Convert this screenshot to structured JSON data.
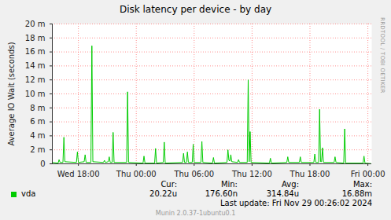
{
  "chart_data": {
    "type": "line",
    "title": "Disk latency per device - by day",
    "y_label": "Average IO Wait (seconds)",
    "side_text": "RRDTOOL / TOBI OETIKER",
    "x": [
      15.3,
      15.9,
      16.0,
      16.1,
      16.4,
      16.5,
      16.6,
      17.8,
      17.9,
      18.0,
      18.6,
      18.7,
      18.8,
      19.3,
      19.4,
      19.5,
      20.6,
      20.7,
      20.8,
      21.1,
      21.2,
      21.3,
      21.5,
      21.6,
      21.7,
      23.0,
      23.1,
      23.2,
      24.7,
      24.8,
      24.9,
      25.9,
      26.0,
      26.1,
      26.8,
      26.9,
      27.0,
      28.8,
      28.9,
      29.0,
      29.2,
      29.3,
      29.4,
      29.8,
      29.9,
      30.0,
      30.7,
      30.8,
      30.9,
      31.9,
      32.0,
      32.1,
      33.4,
      33.5,
      33.6,
      33.7,
      33.8,
      33.9,
      34.5,
      34.6,
      34.7,
      35.5,
      35.6,
      35.7,
      35.8,
      35.9,
      37.8,
      37.9,
      38.0,
      39.6,
      39.7,
      39.8,
      40.9,
      41.0,
      41.1,
      42.4,
      42.5,
      42.6,
      42.9,
      43.0,
      43.1,
      43.2,
      43.3,
      43.4,
      44.5,
      44.6,
      44.7,
      45.5,
      45.6,
      45.7,
      47.5,
      47.6,
      47.7,
      48.4
    ],
    "series": [
      {
        "name": "vda",
        "color": "#00cc00",
        "values": [
          0.0002,
          0.0001,
          0.0006,
          0.0002,
          0.0002,
          0.0038,
          0.0003,
          0.0002,
          0.0017,
          0.0002,
          0.0003,
          0.0013,
          0.0002,
          0.0002,
          0.01688,
          0.0003,
          0.0002,
          0.0005,
          0.0002,
          0.0003,
          0.001,
          0.0002,
          0.0002,
          0.0045,
          0.0002,
          0.0002,
          0.0103,
          0.0002,
          0.0001,
          0.0011,
          0.0001,
          0.0001,
          0.0022,
          0.0001,
          0.0002,
          0.0031,
          0.0001,
          0.0002,
          0.0015,
          0.0002,
          0.0002,
          0.0017,
          0.0002,
          0.0002,
          0.0028,
          0.0002,
          0.0002,
          0.0032,
          0.0002,
          0.0001,
          0.0009,
          0.0001,
          0.0002,
          0.002,
          0.0005,
          0.0004,
          0.0013,
          0.0003,
          0.0002,
          0.0006,
          0.0002,
          0.0002,
          0.012,
          0.0003,
          0.0046,
          0.0002,
          0.0001,
          0.0008,
          0.0001,
          0.0002,
          0.001,
          0.0002,
          0.0002,
          0.001,
          0.0002,
          0.0002,
          0.0014,
          0.0002,
          0.0002,
          0.0078,
          0.0003,
          0.0003,
          0.0023,
          0.0002,
          0.0002,
          0.001,
          0.0002,
          0.0001,
          0.005,
          0.0001,
          0.0001,
          0.0011,
          0.0001,
          2.022e-05
        ],
        "stats": [
          {
            "label": "Cur:",
            "value": "20.22u"
          },
          {
            "label": "Min:",
            "value": "176.60n"
          },
          {
            "label": "Avg:",
            "value": "314.84u"
          },
          {
            "label": "Max:",
            "value": "16.88m"
          }
        ]
      }
    ],
    "xlim": [
      15.3,
      48.4
    ],
    "xticks": [
      {
        "value": 18,
        "label": "Wed 18:00"
      },
      {
        "value": 24,
        "label": "Thu 00:00"
      },
      {
        "value": 30,
        "label": "Thu 06:00"
      },
      {
        "value": 36,
        "label": "Thu 12:00"
      },
      {
        "value": 42,
        "label": "Thu 18:00"
      },
      {
        "value": 48,
        "label": "Fri 00:00"
      }
    ],
    "ylim": [
      0,
      0.02
    ],
    "yticks": [
      0,
      {
        "value": 0.002,
        "label": "2 m"
      },
      {
        "value": 0.004,
        "label": "4 m"
      },
      {
        "value": 0.006,
        "label": "6 m"
      },
      {
        "value": 0.008,
        "label": "8 m"
      },
      {
        "value": 0.01,
        "label": "10 m"
      },
      {
        "value": 0.012,
        "label": "12 m"
      },
      {
        "value": 0.014,
        "label": "14 m"
      },
      {
        "value": 0.016,
        "label": "16 m"
      },
      {
        "value": 0.018,
        "label": "18 m"
      },
      {
        "value": 0.02,
        "label": "20 m"
      }
    ],
    "grid": true,
    "legend": "bottom",
    "last_update": "Last update: Fri Nov 29 00:26:02 2024",
    "footer": "Munin 2.0.37-1ubuntu0.1"
  }
}
